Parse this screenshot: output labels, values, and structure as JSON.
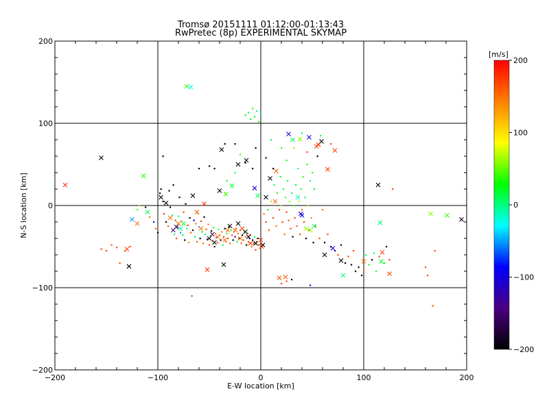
{
  "chart_data": {
    "type": "scatter",
    "title": "Tromsø 20151111 01:12:00-01:13:43",
    "subtitle": "RwPretec (8p) EXPERIMENTAL SKYMAP",
    "xlabel": "E-W location [km]",
    "ylabel": "N-S location [km]",
    "xlim": [
      -200,
      200
    ],
    "ylim": [
      -200,
      200
    ],
    "xticks": [
      "−200",
      "−100",
      "0",
      "100",
      "200"
    ],
    "yticks": [
      "−200",
      "−100",
      "0",
      "100",
      "200"
    ],
    "grid_lines": {
      "x": [
        -100,
        0,
        100
      ],
      "y": [
        -100,
        0,
        100
      ]
    },
    "colorbar": {
      "label": "[m/s]",
      "min": -200,
      "max": 200,
      "ticks": [
        "200",
        "100",
        "0",
        "−100",
        "−200"
      ],
      "colormap": [
        "#000000",
        "#4b0082",
        "#0000ff",
        "#00ffff",
        "#00ff00",
        "#ffff00",
        "#ff8000",
        "#ff0000"
      ]
    },
    "crosses": [
      [
        -190,
        25,
        180
      ],
      [
        -155,
        58,
        -200
      ],
      [
        -130,
        -53,
        170
      ],
      [
        -128,
        -74,
        -200
      ],
      [
        -125,
        -17,
        -50
      ],
      [
        -120,
        -22,
        150
      ],
      [
        -114,
        36,
        40
      ],
      [
        -110,
        -8,
        10
      ],
      [
        -97,
        10,
        -200
      ],
      [
        -92,
        3,
        -190
      ],
      [
        -88,
        -15,
        150
      ],
      [
        -85,
        -30,
        -150
      ],
      [
        -82,
        -26,
        -150
      ],
      [
        -80,
        -22,
        150
      ],
      [
        -78,
        -28,
        0
      ],
      [
        -75,
        -22,
        20
      ],
      [
        -72,
        145,
        40
      ],
      [
        -68,
        144,
        -30
      ],
      [
        -66,
        12,
        -200
      ],
      [
        -62,
        -8,
        160
      ],
      [
        -58,
        -28,
        150
      ],
      [
        -55,
        2,
        180
      ],
      [
        -52,
        -78,
        180
      ],
      [
        -50,
        -40,
        -200
      ],
      [
        -47,
        -35,
        -150
      ],
      [
        -45,
        -45,
        -200
      ],
      [
        -42,
        -38,
        140
      ],
      [
        -40,
        18,
        -200
      ],
      [
        -38,
        68,
        -200
      ],
      [
        -36,
        -72,
        -200
      ],
      [
        -35,
        -42,
        150
      ],
      [
        -34,
        14,
        40
      ],
      [
        -32,
        -30,
        150
      ],
      [
        -30,
        -25,
        -200
      ],
      [
        -28,
        24,
        20
      ],
      [
        -25,
        -30,
        150
      ],
      [
        -22,
        -22,
        -200
      ],
      [
        -22,
        50,
        -200
      ],
      [
        -20,
        -40,
        150
      ],
      [
        -18,
        -28,
        170
      ],
      [
        -15,
        -32,
        -200
      ],
      [
        -14,
        55,
        -200
      ],
      [
        -12,
        -38,
        -200
      ],
      [
        -10,
        -46,
        170
      ],
      [
        -6,
        21,
        -100
      ],
      [
        -5,
        -46,
        -200
      ],
      [
        -3,
        12,
        10
      ],
      [
        0,
        -42,
        170
      ],
      [
        1,
        -50,
        170
      ],
      [
        2,
        -48,
        -200
      ],
      [
        5,
        10,
        -200
      ],
      [
        9,
        33,
        -200
      ],
      [
        14,
        5,
        150
      ],
      [
        15,
        42,
        160
      ],
      [
        18,
        -88,
        170
      ],
      [
        24,
        -87,
        160
      ],
      [
        27,
        87,
        -100
      ],
      [
        31,
        80,
        10
      ],
      [
        36,
        10,
        -10
      ],
      [
        38,
        81,
        60
      ],
      [
        39,
        -10,
        -100
      ],
      [
        40,
        -12,
        -100
      ],
      [
        44,
        -28,
        60
      ],
      [
        47,
        83,
        -100
      ],
      [
        48,
        -30,
        60
      ],
      [
        52,
        -25,
        10
      ],
      [
        54,
        72,
        170
      ],
      [
        56,
        74,
        180
      ],
      [
        59,
        78,
        -200
      ],
      [
        62,
        -60,
        -200
      ],
      [
        65,
        44,
        170
      ],
      [
        70,
        -52,
        -100
      ],
      [
        72,
        67,
        170
      ],
      [
        78,
        -67,
        -200
      ],
      [
        80,
        -85,
        0
      ],
      [
        100,
        -68,
        150
      ],
      [
        114,
        25,
        -200
      ],
      [
        116,
        -21,
        0
      ],
      [
        117,
        -68,
        20
      ],
      [
        118,
        -57,
        170
      ],
      [
        125,
        -83,
        170
      ],
      [
        165,
        -10,
        60
      ],
      [
        181,
        -12,
        40
      ],
      [
        195,
        -17,
        -200
      ]
    ],
    "dots_note": "dense clusters of small velocity-coloured dots",
    "dots": [
      [
        -155,
        -53,
        170
      ],
      [
        -150,
        -55,
        170
      ],
      [
        -145,
        -48,
        160
      ],
      [
        -140,
        -51,
        170
      ],
      [
        -137,
        -70,
        170
      ],
      [
        -132,
        -55,
        160
      ],
      [
        -127,
        -50,
        170
      ],
      [
        -120,
        -5,
        40
      ],
      [
        -118,
        0,
        60
      ],
      [
        -112,
        -2,
        -200
      ],
      [
        -108,
        -14,
        150
      ],
      [
        -104,
        -20,
        -100
      ],
      [
        -102,
        -28,
        160
      ],
      [
        -100,
        -33,
        -200
      ],
      [
        -98,
        15,
        -200
      ],
      [
        -97,
        20,
        -200
      ],
      [
        -95,
        5,
        -200
      ],
      [
        -95,
        60,
        -200
      ],
      [
        -94,
        -10,
        170
      ],
      [
        -92,
        -20,
        -200
      ],
      [
        -90,
        -25,
        160
      ],
      [
        -89,
        18,
        -200
      ],
      [
        -88,
        -2,
        -200
      ],
      [
        -86,
        -12,
        10
      ],
      [
        -85,
        25,
        -200
      ],
      [
        -84,
        -35,
        10
      ],
      [
        -83,
        -18,
        170
      ],
      [
        -82,
        -40,
        170
      ],
      [
        -81,
        -27,
        -100
      ],
      [
        -80,
        -13,
        0
      ],
      [
        -79,
        10,
        -200
      ],
      [
        -78,
        -33,
        -50
      ],
      [
        -77,
        -19,
        140
      ],
      [
        -76,
        -36,
        20
      ],
      [
        -75,
        -8,
        170
      ],
      [
        -74,
        -42,
        -200
      ],
      [
        -73,
        2,
        -200
      ],
      [
        -72,
        -28,
        0
      ],
      [
        -71,
        -24,
        170
      ],
      [
        -70,
        -45,
        140
      ],
      [
        -69,
        -15,
        -200
      ],
      [
        -68,
        -33,
        150
      ],
      [
        -67,
        -110,
        170
      ],
      [
        -66,
        -30,
        -200
      ],
      [
        -65,
        -18,
        -100
      ],
      [
        -64,
        -38,
        10
      ],
      [
        -63,
        -22,
        150
      ],
      [
        -62,
        -44,
        160
      ],
      [
        -61,
        -10,
        60
      ],
      [
        -60,
        -26,
        -50
      ],
      [
        -59,
        -40,
        -200
      ],
      [
        -58,
        -19,
        170
      ],
      [
        -57,
        -32,
        20
      ],
      [
        -56,
        -46,
        150
      ],
      [
        -55,
        -14,
        -200
      ],
      [
        -54,
        -35,
        0
      ],
      [
        -53,
        -29,
        170
      ],
      [
        -52,
        -41,
        -150
      ],
      [
        -51,
        -23,
        140
      ],
      [
        -50,
        -48,
        170
      ],
      [
        -49,
        -37,
        20
      ],
      [
        -48,
        -31,
        -200
      ],
      [
        -47,
        -43,
        170
      ],
      [
        -46,
        -27,
        10
      ],
      [
        -45,
        -50,
        -200
      ],
      [
        -44,
        -34,
        150
      ],
      [
        -43,
        -39,
        -100
      ],
      [
        -42,
        -45,
        170
      ],
      [
        -41,
        -29,
        0
      ],
      [
        -40,
        -36,
        160
      ],
      [
        -39,
        -42,
        -200
      ],
      [
        -38,
        -32,
        150
      ],
      [
        -37,
        -48,
        20
      ],
      [
        -36,
        -38,
        170
      ],
      [
        -35,
        -28,
        -200
      ],
      [
        -34,
        -44,
        160
      ],
      [
        -33,
        -34,
        40
      ],
      [
        -32,
        -40,
        170
      ],
      [
        -31,
        -26,
        -200
      ],
      [
        -30,
        -46,
        150
      ],
      [
        -29,
        -30,
        10
      ],
      [
        -28,
        -36,
        170
      ],
      [
        -27,
        -42,
        -200
      ],
      [
        -26,
        -32,
        160
      ],
      [
        -25,
        -38,
        -150
      ],
      [
        -24,
        -28,
        170
      ],
      [
        -23,
        -44,
        10
      ],
      [
        -22,
        -34,
        150
      ],
      [
        -21,
        -40,
        -200
      ],
      [
        -20,
        -30,
        170
      ],
      [
        -19,
        -46,
        160
      ],
      [
        -18,
        -36,
        -200
      ],
      [
        -17,
        -42,
        170
      ],
      [
        -16,
        -32,
        0
      ],
      [
        -15,
        -38,
        150
      ],
      [
        -14,
        -48,
        -200
      ],
      [
        -13,
        -34,
        170
      ],
      [
        -12,
        -44,
        160
      ],
      [
        -11,
        -40,
        -100
      ],
      [
        -10,
        -36,
        170
      ],
      [
        -9,
        -50,
        150
      ],
      [
        -8,
        -42,
        -200
      ],
      [
        -7,
        -46,
        170
      ],
      [
        -6,
        -38,
        10
      ],
      [
        -5,
        -54,
        170
      ],
      [
        -4,
        -44,
        160
      ],
      [
        -3,
        -40,
        -200
      ],
      [
        -2,
        -48,
        170
      ],
      [
        -1,
        -52,
        150
      ],
      [
        0,
        -46,
        170
      ],
      [
        -15,
        110,
        20
      ],
      [
        -12,
        113,
        10
      ],
      [
        -10,
        105,
        30
      ],
      [
        -8,
        118,
        40
      ],
      [
        -6,
        108,
        20
      ],
      [
        -4,
        115,
        0
      ],
      [
        -2,
        102,
        40
      ],
      [
        0,
        112,
        10
      ],
      [
        -20,
        62,
        40
      ],
      [
        -25,
        40,
        20
      ],
      [
        -33,
        30,
        10
      ],
      [
        -45,
        45,
        -200
      ],
      [
        -35,
        75,
        -200
      ],
      [
        3,
        -10,
        150
      ],
      [
        5,
        -20,
        170
      ],
      [
        7,
        -5,
        20
      ],
      [
        8,
        -30,
        160
      ],
      [
        10,
        5,
        60
      ],
      [
        12,
        -15,
        170
      ],
      [
        13,
        25,
        10
      ],
      [
        15,
        -25,
        150
      ],
      [
        16,
        15,
        40
      ],
      [
        18,
        -5,
        170
      ],
      [
        19,
        35,
        20
      ],
      [
        20,
        0,
        60
      ],
      [
        21,
        -20,
        170
      ],
      [
        22,
        20,
        10
      ],
      [
        23,
        -35,
        150
      ],
      [
        24,
        10,
        40
      ],
      [
        25,
        -8,
        170
      ],
      [
        26,
        30,
        20
      ],
      [
        27,
        -18,
        160
      ],
      [
        28,
        5,
        60
      ],
      [
        29,
        -28,
        170
      ],
      [
        30,
        15,
        10
      ],
      [
        31,
        -38,
        -200
      ],
      [
        32,
        0,
        40
      ],
      [
        33,
        -15,
        170
      ],
      [
        34,
        25,
        20
      ],
      [
        35,
        -25,
        160
      ],
      [
        36,
        45,
        10
      ],
      [
        37,
        5,
        60
      ],
      [
        38,
        -35,
        170
      ],
      [
        39,
        20,
        20
      ],
      [
        40,
        -5,
        150
      ],
      [
        41,
        35,
        40
      ],
      [
        42,
        -20,
        170
      ],
      [
        43,
        10,
        10
      ],
      [
        44,
        -40,
        -200
      ],
      [
        45,
        50,
        20
      ],
      [
        46,
        0,
        60
      ],
      [
        47,
        -30,
        170
      ],
      [
        48,
        30,
        10
      ],
      [
        49,
        -15,
        150
      ],
      [
        50,
        40,
        40
      ],
      [
        51,
        -45,
        -200
      ],
      [
        52,
        20,
        20
      ],
      [
        53,
        -25,
        170
      ],
      [
        55,
        60,
        -200
      ],
      [
        57,
        -40,
        170
      ],
      [
        60,
        -5,
        150
      ],
      [
        62,
        -45,
        -200
      ],
      [
        65,
        -35,
        170
      ],
      [
        68,
        -50,
        -200
      ],
      [
        72,
        -55,
        -100
      ],
      [
        75,
        -60,
        170
      ],
      [
        78,
        -48,
        -200
      ],
      [
        82,
        -70,
        -200
      ],
      [
        85,
        -62,
        170
      ],
      [
        88,
        -72,
        -200
      ],
      [
        90,
        -55,
        170
      ],
      [
        92,
        -80,
        -200
      ],
      [
        95,
        -75,
        -200
      ],
      [
        98,
        -85,
        -200
      ],
      [
        100,
        -78,
        150
      ],
      [
        102,
        -60,
        0
      ],
      [
        105,
        -72,
        20
      ],
      [
        108,
        -66,
        -200
      ],
      [
        110,
        -58,
        0
      ],
      [
        112,
        -80,
        10
      ],
      [
        115,
        -62,
        170
      ],
      [
        120,
        -70,
        20
      ],
      [
        122,
        -50,
        -200
      ],
      [
        125,
        -66,
        170
      ],
      [
        128,
        20,
        170
      ],
      [
        160,
        -75,
        170
      ],
      [
        162,
        -85,
        170
      ],
      [
        167,
        -122,
        170
      ],
      [
        169,
        -55,
        170
      ],
      [
        20,
        -95,
        170
      ],
      [
        25,
        -92,
        170
      ],
      [
        30,
        -90,
        -200
      ],
      [
        48,
        -97,
        -100
      ],
      [
        10,
        80,
        10
      ],
      [
        20,
        70,
        40
      ],
      [
        25,
        55,
        20
      ],
      [
        32,
        70,
        60
      ],
      [
        40,
        88,
        10
      ],
      [
        45,
        65,
        170
      ],
      [
        58,
        85,
        20
      ],
      [
        68,
        75,
        170
      ],
      [
        -60,
        45,
        -200
      ],
      [
        -50,
        48,
        -200
      ],
      [
        -25,
        75,
        -200
      ],
      [
        -15,
        52,
        -200
      ],
      [
        -8,
        45,
        -200
      ],
      [
        -5,
        70,
        -200
      ],
      [
        5,
        58,
        -200
      ],
      [
        12,
        45,
        -200
      ]
    ]
  }
}
